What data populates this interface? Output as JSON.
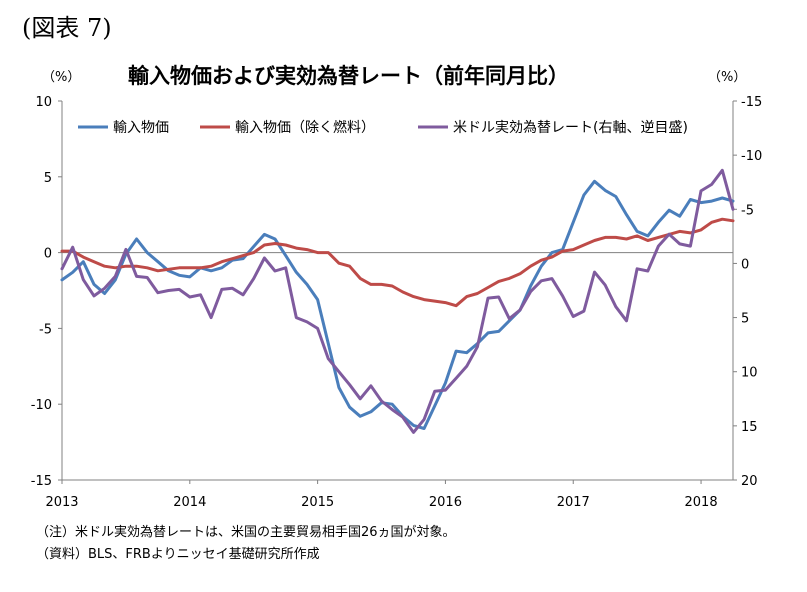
{
  "figure_label": "(図表 7)",
  "units": {
    "left": "（%）",
    "right": "（%）"
  },
  "notes": [
    "（注）米ドル実効為替レートは、米国の主要貿易相手国26ヵ国が対象。",
    "（資料）BLS、FRBよりニッセイ基礎研究所作成"
  ],
  "colors": {
    "series1": "#4a7ebb",
    "series2": "#be4b48",
    "series3": "#7f5b9e"
  },
  "chart_data": {
    "type": "line",
    "title": "輸入物価および実効為替レート（前年同月比）",
    "x_start": "2013-01",
    "x_end": "2018-02",
    "xtick_labels": [
      "2013",
      "2014",
      "2015",
      "2016",
      "2017",
      "2018"
    ],
    "ylim_left": [
      -15,
      10
    ],
    "yticks_left": [
      "10",
      "5",
      "0",
      "-5",
      "-10",
      "-15"
    ],
    "ylim_right_reversed": [
      -15,
      20
    ],
    "yticks_right": [
      "-15",
      "-10",
      "-5",
      "0",
      "5",
      "10",
      "15",
      "20"
    ],
    "series": [
      {
        "name": "輸入物価",
        "axis": "left",
        "values": [
          -1.8,
          -1.3,
          -0.6,
          -2.1,
          -2.7,
          -1.8,
          -0.1,
          0.9,
          0.0,
          -0.6,
          -1.2,
          -1.5,
          -1.6,
          -1.0,
          -1.2,
          -1.0,
          -0.5,
          -0.4,
          0.4,
          1.2,
          0.9,
          -0.2,
          -1.3,
          -2.1,
          -3.1,
          -6.0,
          -8.9,
          -10.2,
          -10.8,
          -10.5,
          -9.9,
          -10.0,
          -10.8,
          -11.4,
          -11.6,
          -10.1,
          -8.6,
          -6.5,
          -6.6,
          -6.0,
          -5.3,
          -5.2,
          -4.5,
          -3.8,
          -2.2,
          -0.9,
          0.0,
          0.2,
          2.0,
          3.8,
          4.7,
          4.1,
          3.7,
          2.5,
          1.4,
          1.1,
          2.0,
          2.8,
          2.4,
          3.5,
          3.3,
          3.4,
          3.6,
          3.4
        ]
      },
      {
        "name": "輸入物価（除く燃料）",
        "axis": "left",
        "values": [
          0.1,
          0.1,
          -0.3,
          -0.6,
          -0.9,
          -1.0,
          -0.9,
          -0.9,
          -1.0,
          -1.2,
          -1.1,
          -1.0,
          -1.0,
          -1.0,
          -0.9,
          -0.6,
          -0.4,
          -0.2,
          0.0,
          0.5,
          0.6,
          0.5,
          0.3,
          0.2,
          0.0,
          0.0,
          -0.7,
          -0.9,
          -1.7,
          -2.1,
          -2.1,
          -2.2,
          -2.6,
          -2.9,
          -3.1,
          -3.2,
          -3.3,
          -3.5,
          -2.9,
          -2.7,
          -2.3,
          -1.9,
          -1.7,
          -1.4,
          -0.9,
          -0.5,
          -0.3,
          0.1,
          0.2,
          0.5,
          0.8,
          1.0,
          1.0,
          0.9,
          1.1,
          0.8,
          1.0,
          1.2,
          1.4,
          1.3,
          1.5,
          2.0,
          2.2,
          2.1
        ]
      },
      {
        "name": "米ドル実効為替レート(右軸、逆目盛)",
        "axis": "right",
        "values": [
          0.5,
          -1.5,
          1.5,
          3.0,
          2.3,
          1.2,
          -1.3,
          1.2,
          1.3,
          2.7,
          2.5,
          2.4,
          3.1,
          2.9,
          5.0,
          2.4,
          2.3,
          2.9,
          1.4,
          -0.5,
          0.7,
          0.4,
          5.0,
          5.4,
          6.0,
          8.8,
          10.0,
          11.2,
          12.5,
          11.3,
          12.7,
          13.5,
          14.2,
          15.6,
          14.4,
          11.8,
          11.7,
          10.6,
          9.5,
          7.7,
          3.2,
          3.1,
          5.1,
          4.3,
          2.6,
          1.6,
          1.4,
          3.0,
          4.9,
          4.4,
          0.8,
          2.0,
          4.0,
          5.3,
          0.5,
          0.7,
          -1.6,
          -2.7,
          -1.8,
          -1.6,
          -6.7,
          -7.3,
          -8.6,
          -5.0
        ]
      }
    ],
    "grid": false,
    "legend_position": "top"
  }
}
